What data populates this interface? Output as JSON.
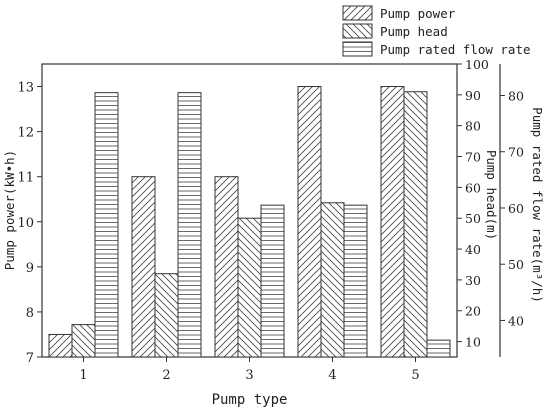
{
  "chart_data": {
    "type": "bar",
    "categories": [
      "1",
      "2",
      "3",
      "4",
      "5"
    ],
    "xlabel": "Pump type",
    "legend_position": "top-right",
    "grid": false,
    "series": [
      {
        "name": "Pump power",
        "axis": "left",
        "values": [
          7.5,
          11.0,
          11.0,
          13.0,
          13.0
        ],
        "hatch": "forward-diagonal"
      },
      {
        "name": "Pump head",
        "axis": "right1",
        "values": [
          15.5,
          32.0,
          50.0,
          55.0,
          91.0
        ],
        "hatch": "back-diagonal"
      },
      {
        "name": "Pump rated flow rate",
        "axis": "right2",
        "values": [
          80.5,
          80.5,
          60.5,
          60.5,
          36.5
        ],
        "hatch": "horizontal"
      }
    ],
    "axes": {
      "left": {
        "label": "Pump power(kW•h)",
        "ylim": [
          7,
          13.5
        ],
        "ticks": [
          "7",
          "8",
          "9",
          "10",
          "11",
          "12",
          "13"
        ]
      },
      "right1": {
        "label": "Pump head(m)",
        "ylim": [
          5,
          100
        ],
        "ticks": [
          "10",
          "20",
          "30",
          "40",
          "50",
          "60",
          "70",
          "80",
          "90",
          "100"
        ]
      },
      "right2": {
        "label": "Pump rated flow rate(m³/h)",
        "ylim": [
          33.5,
          85.6
        ],
        "ticks": [
          "40",
          "50",
          "60",
          "70",
          "80"
        ]
      }
    }
  },
  "colors": {
    "stroke": "#333333",
    "text": "#222222",
    "background": "#ffffff"
  }
}
